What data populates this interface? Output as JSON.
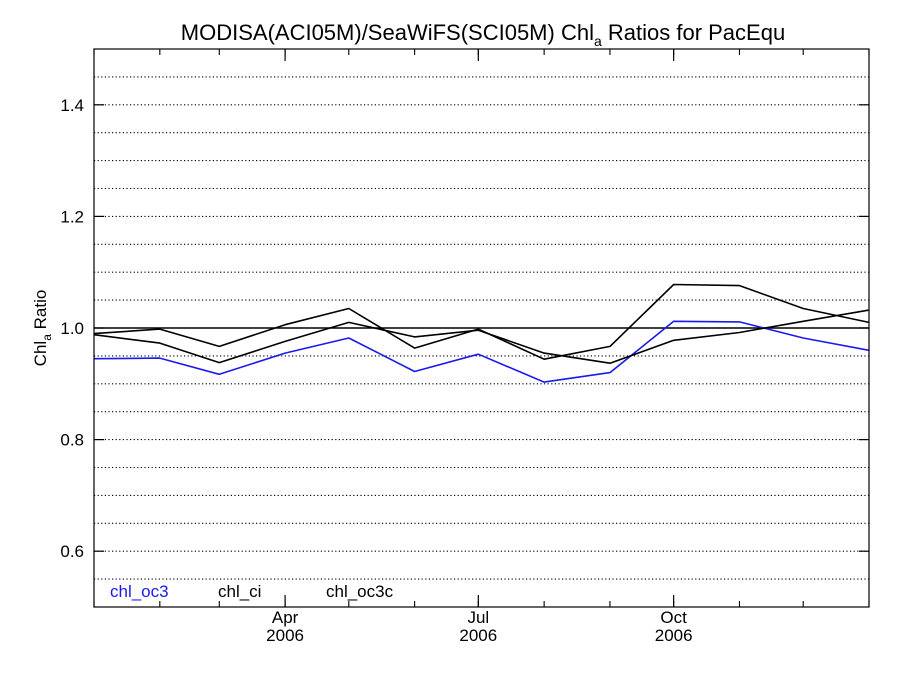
{
  "chart_data": {
    "type": "line",
    "title": {
      "prefix": "MODISA(ACI05M)/SeaWiFS(SCI05M)  Chl",
      "subscript": "a",
      "suffix": " Ratios for PacEqu"
    },
    "ylabel": {
      "prefix": "Chl",
      "subscript": "a",
      "suffix": " Ratio"
    },
    "xlabel": "",
    "ylim": [
      0.5,
      1.5
    ],
    "y_ticks": [
      0.6,
      0.8,
      1.0,
      1.2,
      1.4
    ],
    "y_tick_labels": [
      "0.6",
      "0.8",
      "1.0",
      "1.2",
      "1.4"
    ],
    "xlim": [
      "2006-01-01",
      "2007-01-01"
    ],
    "x_major_ticks": [
      {
        "date": "2006-04-01",
        "month": "Apr",
        "year": "2006"
      },
      {
        "date": "2006-07-01",
        "month": "Jul",
        "year": "2006"
      },
      {
        "date": "2006-10-01",
        "month": "Oct",
        "year": "2006"
      }
    ],
    "grid": "horizontal dotted",
    "reference_line": 1.0,
    "x": [
      "2006-01-01",
      "2006-02-01",
      "2006-03-01",
      "2006-04-01",
      "2006-05-01",
      "2006-06-01",
      "2006-07-01",
      "2006-08-01",
      "2006-09-01",
      "2006-10-01",
      "2006-11-01",
      "2006-12-01",
      "2007-01-01"
    ],
    "series": [
      {
        "name": "chl_oc3",
        "color": "#1a1aee",
        "values": [
          0.945,
          0.946,
          0.917,
          0.955,
          0.982,
          0.922,
          0.953,
          0.903,
          0.92,
          1.012,
          1.011,
          0.982,
          0.96
        ]
      },
      {
        "name": "chl_ci",
        "color": "#000000",
        "values": [
          0.988,
          0.973,
          0.938,
          0.976,
          1.01,
          0.984,
          0.996,
          0.955,
          0.937,
          0.978,
          0.992,
          1.012,
          1.032
        ]
      },
      {
        "name": "chl_oc3c",
        "color": "#000000",
        "values": [
          0.99,
          0.998,
          0.967,
          1.006,
          1.035,
          0.964,
          0.998,
          0.944,
          0.967,
          1.078,
          1.076,
          1.035,
          1.01
        ]
      }
    ],
    "legend_placement": "bottom-left"
  }
}
